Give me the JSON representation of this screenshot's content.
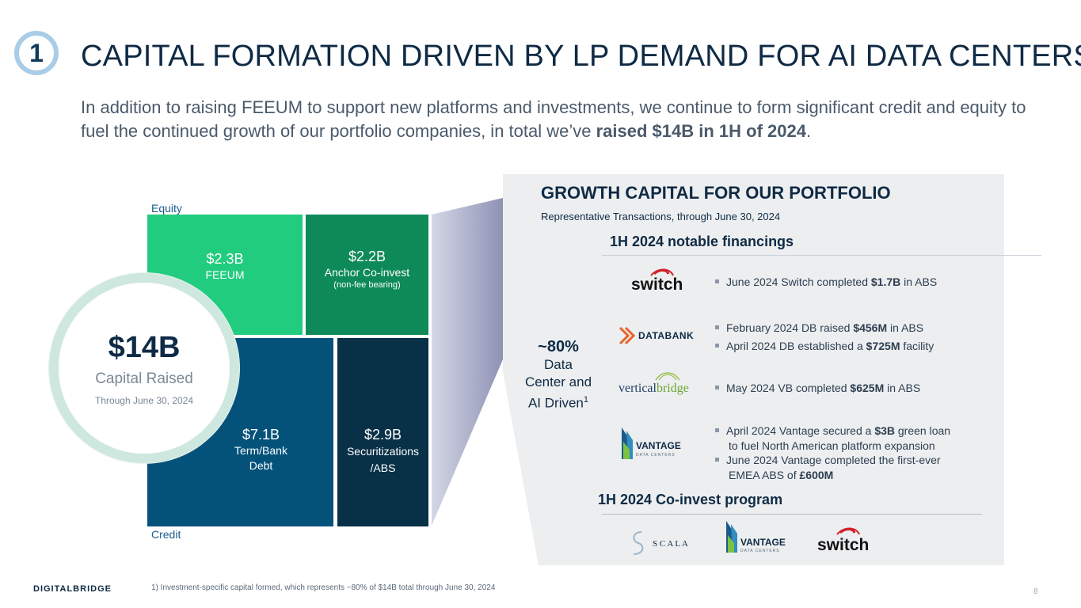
{
  "header": {
    "section_number": "1",
    "title": "CAPITAL FORMATION DRIVEN BY LP DEMAND FOR AI DATA CENTERS",
    "intro_text": "In addition to raising FEEUM to support new platforms and investments, we continue to form significant credit and equity to fuel the continued growth of our portfolio companies, in total we’ve ",
    "intro_bold": "raised $14B in 1H of 2024",
    "intro_end": "."
  },
  "treemap": {
    "equity_label": "Equity",
    "credit_label": "Credit",
    "blocks": [
      {
        "amount": "$2.3B",
        "label": "FEEUM",
        "sub": "",
        "color": "#22cc7f"
      },
      {
        "amount": "$2.2B",
        "label": "Anchor Co-invest",
        "sub": "(non-fee bearing)",
        "color": "#0e8a59"
      },
      {
        "amount": "$7.1B",
        "label": "Term/Bank Debt",
        "sub": "",
        "color": "#04527a"
      },
      {
        "amount": "$2.9B",
        "label": "Securitizations /ABS",
        "sub": "",
        "color": "#083047"
      }
    ],
    "total": {
      "amount": "$14B",
      "label": "Capital Raised",
      "sub": "Through June 30, 2024"
    }
  },
  "panel": {
    "title": "GROWTH CAPITAL FOR OUR PORTFOLIO",
    "subtitle": "Representative Transactions, through June 30, 2024",
    "share": {
      "value": "~80%",
      "label_lines": [
        "Data",
        "Center and",
        "AI Driven"
      ],
      "footnote_marker": "1"
    },
    "financings": {
      "heading": "1H 2024 notable financings",
      "rows": [
        {
          "logo": "switch",
          "bullets": [
            {
              "pre": "June 2024 Switch completed ",
              "bold": "$1.7B",
              "post": " in ABS"
            }
          ]
        },
        {
          "logo": "DATABANK",
          "bullets": [
            {
              "pre": "February 2024 DB raised ",
              "bold": "$456M",
              "post": " in ABS"
            },
            {
              "pre": "April 2024 DB established a ",
              "bold": "$725M",
              "post": " facility"
            }
          ]
        },
        {
          "logo_pre": "vertical",
          "logo_post": "bridge",
          "bullets": [
            {
              "pre": "May 2024 VB completed ",
              "bold": "$625M",
              "post": " in ABS"
            }
          ]
        },
        {
          "logo": "VANTAGE",
          "logo_sub": "DATA CENTERS",
          "bullets": [
            {
              "pre": "April 2024 Vantage secured a ",
              "bold": "$3B",
              "post": " green loan",
              "cont": "to fuel North American platform expansion"
            },
            {
              "pre": "June 2024 Vantage completed the first-ever",
              "bold": "",
              "post": "",
              "cont_pre": "EMEA ABS of ",
              "cont_bold": "£600M"
            }
          ]
        }
      ]
    },
    "coinvest": {
      "heading": "1H 2024 Co-invest program",
      "logos": [
        "S C A L A",
        "VANTAGE",
        "DATA CENTERS",
        "switch"
      ]
    }
  },
  "footer": {
    "brand": "DIGITALBRIDGE",
    "footnote": "1) Investment-specific capital formed, which represents ~80% of $14B total through June 30, 2024",
    "page_number": "8"
  }
}
